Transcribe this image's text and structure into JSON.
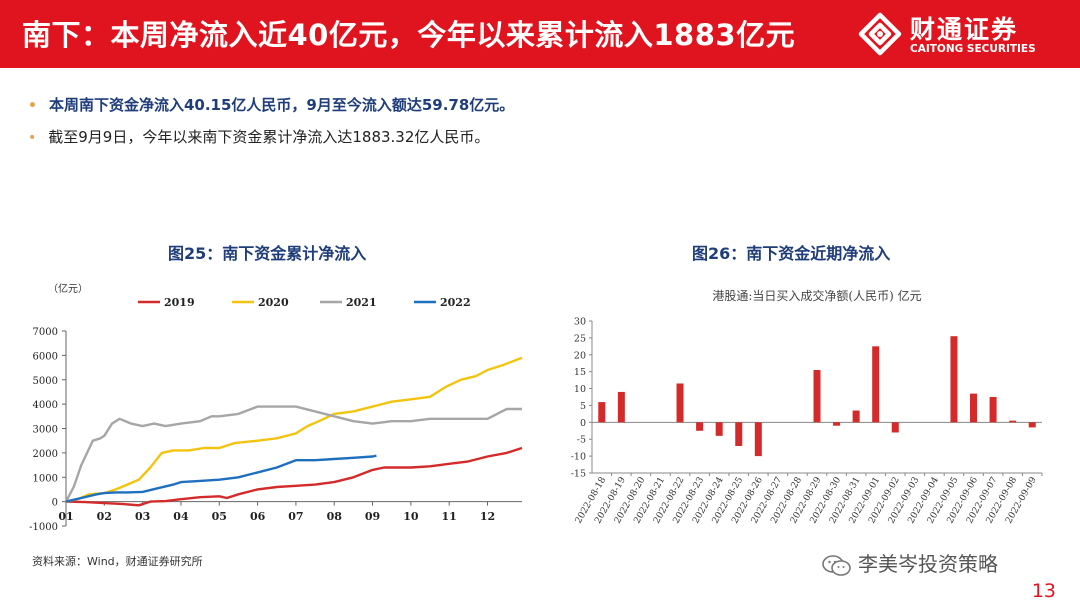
{
  "header": {
    "title": "南下：本周净流入近40亿元，今年以来累计流入1883亿元",
    "logo_cn": "财通证券",
    "logo_en": "CAITONG SECURITIES",
    "accent_color": "#e0141e"
  },
  "bullets": [
    "本周南下资金净流入40.15亿人民币，9月至今流入额达59.78亿元。",
    "截至9月9日，今年以来南下资金累计净流入达1883.32亿人民币。"
  ],
  "source": "资料来源：Wind，财通证券研究所",
  "watermark": "李美岑投资策略",
  "page_number": "13",
  "chart_data": [
    {
      "type": "line",
      "title": "图25：南下资金累计净流入",
      "unit_label": "（亿元）",
      "ylim": [
        -1000,
        7000
      ],
      "yticks": [
        -1000,
        0,
        1000,
        2000,
        3000,
        4000,
        5000,
        6000,
        7000
      ],
      "x_tick_labels": [
        "01",
        "02",
        "03",
        "04",
        "05",
        "06",
        "07",
        "08",
        "09",
        "10",
        "11",
        "12"
      ],
      "x_domain": [
        1,
        12.9
      ],
      "series": [
        {
          "name": "2019",
          "color": "#d42a2a",
          "x": [
            1,
            1.5,
            2,
            2.5,
            2.9,
            3.2,
            3.6,
            4,
            4.5,
            5,
            5.2,
            5.5,
            6,
            6.5,
            7,
            7.5,
            8,
            8.5,
            9,
            9.3,
            9.5,
            10,
            10.5,
            11,
            11.5,
            12,
            12.5,
            12.9
          ],
          "y": [
            0,
            -20,
            -60,
            -100,
            -150,
            0,
            20,
            100,
            180,
            220,
            150,
            300,
            500,
            600,
            650,
            700,
            800,
            1000,
            1300,
            1400,
            1400,
            1400,
            1450,
            1550,
            1650,
            1850,
            2000,
            2200
          ]
        },
        {
          "name": "2020",
          "color": "#f2c40f",
          "x": [
            1,
            1.3,
            1.6,
            2,
            2.3,
            2.6,
            2.9,
            3.2,
            3.5,
            3.8,
            4.2,
            4.6,
            5,
            5.4,
            6,
            6.5,
            7,
            7.3,
            7.6,
            8,
            8.5,
            9,
            9.5,
            10,
            10.5,
            10.9,
            11.3,
            11.7,
            12,
            12.4,
            12.9
          ],
          "y": [
            0,
            100,
            300,
            350,
            500,
            700,
            900,
            1400,
            2000,
            2100,
            2100,
            2200,
            2200,
            2400,
            2500,
            2600,
            2800,
            3100,
            3300,
            3600,
            3700,
            3900,
            4100,
            4200,
            4300,
            4700,
            5000,
            5150,
            5400,
            5600,
            5900
          ]
        },
        {
          "name": "2021",
          "color": "#a6a6a6",
          "x": [
            1,
            1.2,
            1.4,
            1.7,
            1.9,
            2,
            2.2,
            2.4,
            2.7,
            3,
            3.3,
            3.6,
            4,
            4.5,
            4.8,
            5,
            5.5,
            6,
            6.5,
            7,
            7.5,
            8,
            8.5,
            9,
            9.5,
            10,
            10.5,
            11,
            11.5,
            12,
            12.5,
            12.9
          ],
          "y": [
            0,
            600,
            1500,
            2500,
            2600,
            2700,
            3200,
            3400,
            3200,
            3100,
            3200,
            3100,
            3200,
            3300,
            3500,
            3500,
            3600,
            3900,
            3900,
            3900,
            3700,
            3500,
            3300,
            3200,
            3300,
            3300,
            3400,
            3400,
            3400,
            3400,
            3800,
            3800
          ]
        },
        {
          "name": "2022",
          "color": "#1e6fbf",
          "x": [
            1,
            1.4,
            1.8,
            2,
            2.3,
            2.6,
            3,
            3.4,
            3.8,
            4,
            4.5,
            5,
            5.5,
            6,
            6.5,
            7,
            7.5,
            8,
            8.5,
            9,
            9.1
          ],
          "y": [
            0,
            150,
            300,
            350,
            380,
            380,
            400,
            550,
            700,
            800,
            850,
            900,
            1000,
            1200,
            1400,
            1700,
            1700,
            1750,
            1800,
            1850,
            1883
          ]
        }
      ]
    },
    {
      "type": "bar",
      "title": "图26：南下资金近期净流入",
      "subtitle": "港股通:当日买入成交净额(人民币) 亿元",
      "ylim": [
        -15,
        30
      ],
      "yticks": [
        -15,
        -10,
        -5,
        0,
        5,
        10,
        15,
        20,
        25,
        30
      ],
      "categories": [
        "2022-08-18",
        "2022-08-19",
        "2022-08-20",
        "2022-08-21",
        "2022-08-22",
        "2022-08-23",
        "2022-08-24",
        "2022-08-25",
        "2022-08-26",
        "2022-08-27",
        "2022-08-28",
        "2022-08-29",
        "2022-08-30",
        "2022-08-31",
        "2022-09-01",
        "2022-09-02",
        "2022-09-03",
        "2022-09-04",
        "2022-09-05",
        "2022-09-06",
        "2022-09-07",
        "2022-09-08",
        "2022-09-09"
      ],
      "values": [
        6,
        9,
        0,
        0,
        11.5,
        -2.5,
        -4,
        -7,
        -10,
        0,
        0,
        15.5,
        -1,
        3.5,
        22.5,
        -3,
        0,
        0,
        25.5,
        8.5,
        7.5,
        0.5,
        -1.5
      ],
      "bar_color": "#d42a2a"
    }
  ]
}
